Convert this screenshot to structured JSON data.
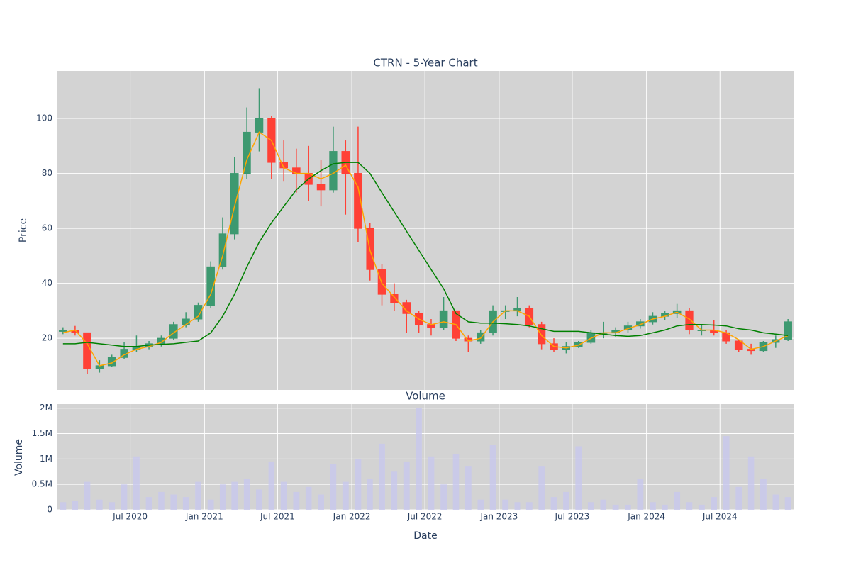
{
  "chart_data": [
    {
      "type": "candlestick",
      "title": "CTRN - 5-Year Chart",
      "y_label": "Price",
      "x": [
        "2020-01",
        "2020-02",
        "2020-03",
        "2020-04",
        "2020-05",
        "2020-06",
        "2020-07",
        "2020-08",
        "2020-09",
        "2020-10",
        "2020-11",
        "2020-12",
        "2021-01",
        "2021-02",
        "2021-03",
        "2021-04",
        "2021-05",
        "2021-06",
        "2021-07",
        "2021-08",
        "2021-09",
        "2021-10",
        "2021-11",
        "2021-12",
        "2022-01",
        "2022-02",
        "2022-03",
        "2022-04",
        "2022-05",
        "2022-06",
        "2022-07",
        "2022-08",
        "2022-09",
        "2022-10",
        "2022-11",
        "2022-12",
        "2023-01",
        "2023-02",
        "2023-03",
        "2023-04",
        "2023-05",
        "2023-06",
        "2023-07",
        "2023-08",
        "2023-09",
        "2023-10",
        "2023-11",
        "2023-12",
        "2024-01",
        "2024-02",
        "2024-03",
        "2024-04",
        "2024-05",
        "2024-06",
        "2024-07",
        "2024-08",
        "2024-09",
        "2024-10",
        "2024-11",
        "2024-12"
      ],
      "open": [
        22.5,
        23,
        22,
        9,
        10,
        13,
        16,
        17,
        18,
        20,
        25,
        27,
        32,
        46,
        58,
        80,
        95,
        100,
        84,
        82,
        80,
        76,
        74,
        88,
        80,
        60,
        45,
        36,
        33,
        29,
        25,
        24,
        30,
        20,
        19,
        22,
        30,
        30,
        31,
        25,
        18,
        16,
        17,
        18.5,
        22,
        22,
        23,
        24.5,
        26,
        28,
        29,
        30,
        23,
        23,
        22,
        19,
        16,
        15.5,
        18.5,
        19.5
      ],
      "high": [
        24,
        24.5,
        22,
        12,
        14,
        18.5,
        21,
        19,
        21,
        26,
        29.5,
        33,
        48,
        64,
        86,
        104,
        111,
        101,
        92,
        89,
        90,
        85,
        97,
        92,
        97,
        62,
        47,
        40,
        34,
        30,
        27,
        35,
        30,
        21,
        23,
        32,
        32,
        35,
        32,
        26,
        20,
        18.5,
        19,
        23,
        26,
        24,
        26,
        27,
        29.5,
        30,
        32.5,
        31,
        25,
        26.5,
        23,
        19.5,
        18,
        19,
        21,
        27
      ],
      "low": [
        21.5,
        21,
        7,
        7.5,
        9.5,
        12.5,
        15,
        16,
        17,
        19.5,
        24,
        26,
        31,
        45,
        56,
        78,
        88,
        78,
        77,
        73,
        70,
        68,
        73,
        65,
        55,
        41,
        32,
        30,
        22,
        22,
        21,
        23,
        19,
        15,
        18,
        21,
        27,
        28,
        24,
        16,
        15,
        14.5,
        16.5,
        18,
        20,
        20.5,
        22,
        23.5,
        25,
        26.5,
        27.5,
        21.5,
        21,
        21,
        18,
        15,
        14,
        15,
        16.5,
        19
      ],
      "close": [
        23,
        22,
        9,
        10,
        13,
        16,
        17,
        18,
        20,
        25,
        27,
        32,
        46,
        58,
        80,
        95,
        100,
        84,
        82,
        80,
        76,
        74,
        88,
        80,
        60,
        45,
        36,
        33,
        29,
        25,
        24,
        30,
        20,
        19,
        22,
        30,
        30,
        31,
        25,
        18,
        16,
        17,
        18.5,
        22,
        22,
        23,
        24.5,
        26,
        28,
        29,
        30,
        23,
        23,
        22,
        19,
        16,
        15.5,
        18.5,
        19.5,
        26
      ],
      "increasing_color": "#3d9970",
      "decreasing_color": "#ff4136",
      "lines": [
        {
          "color": "orange",
          "values": [
            22,
            23,
            18,
            10,
            11,
            14,
            16,
            17,
            18.5,
            22,
            25,
            28,
            36,
            50,
            68,
            85,
            95,
            92,
            82,
            80,
            80,
            78,
            80,
            83,
            75,
            52,
            40,
            35,
            30,
            27,
            25,
            26,
            25,
            19,
            20,
            26,
            30,
            30,
            28,
            21,
            17,
            16.5,
            17.5,
            20,
            22,
            22,
            23.5,
            25,
            27,
            28,
            29.5,
            27,
            23,
            23,
            22,
            19.5,
            16,
            17,
            19,
            21
          ]
        },
        {
          "color": "green",
          "values": [
            18,
            18,
            18.5,
            18,
            17.5,
            17,
            17,
            17.5,
            17.8,
            18,
            18.5,
            19,
            22,
            28,
            36,
            46,
            55,
            62,
            68,
            74,
            78,
            81,
            83.5,
            84,
            84,
            80,
            73,
            66,
            59,
            52,
            45,
            38,
            29,
            26,
            25.5,
            25.5,
            25.3,
            25,
            24.5,
            23.5,
            22.5,
            22.5,
            22.5,
            22,
            21.5,
            21,
            20.7,
            21,
            22,
            23,
            24.5,
            25,
            25,
            24.8,
            24.5,
            23.5,
            23,
            22,
            21.5,
            21
          ]
        }
      ],
      "xlim": [
        "2020-01",
        "2025-01"
      ],
      "ylim": [
        1.2,
        117.3
      ],
      "yticks": [
        20,
        40,
        60,
        80,
        100
      ],
      "grid": true,
      "background": "#d3d3d3"
    },
    {
      "type": "bar",
      "title": "Volume",
      "x_label": "Date",
      "y_label": "Volume",
      "color": "#c8c8ee",
      "values": [
        150000,
        180000,
        550000,
        200000,
        150000,
        500000,
        1050000,
        250000,
        350000,
        300000,
        250000,
        550000,
        200000,
        500000,
        550000,
        600000,
        400000,
        950000,
        550000,
        350000,
        450000,
        300000,
        900000,
        550000,
        1000000,
        600000,
        1300000,
        750000,
        950000,
        2000000,
        1050000,
        500000,
        1100000,
        850000,
        200000,
        1270000,
        200000,
        150000,
        150000,
        850000,
        250000,
        350000,
        1250000,
        150000,
        200000,
        100000,
        100000,
        600000,
        150000,
        100000,
        350000,
        150000,
        100000,
        250000,
        1450000,
        450000,
        1050000,
        600000,
        300000,
        250000
      ],
      "xlim": [
        "2020-01",
        "2025-01"
      ],
      "ylim": [
        0,
        2080000
      ],
      "yticks": [
        0,
        {
          "value": 500000,
          "label": "0.5M"
        },
        {
          "value": 1000000,
          "label": "1M"
        },
        {
          "value": 1500000,
          "label": "1.5M"
        },
        {
          "value": 2000000,
          "label": "2M"
        }
      ],
      "xticks": [
        {
          "value": "2020-07",
          "label": "Jul 2020"
        },
        {
          "value": "2021-01",
          "label": "Jan 2021"
        },
        {
          "value": "2021-07",
          "label": "Jul 2021"
        },
        {
          "value": "2022-01",
          "label": "Jan 2022"
        },
        {
          "value": "2022-07",
          "label": "Jul 2022"
        },
        {
          "value": "2023-01",
          "label": "Jan 2023"
        },
        {
          "value": "2023-07",
          "label": "Jul 2023"
        },
        {
          "value": "2024-01",
          "label": "Jan 2024"
        },
        {
          "value": "2024-07",
          "label": "Jul 2024"
        }
      ],
      "grid": true,
      "background": "#d3d3d3"
    }
  ]
}
